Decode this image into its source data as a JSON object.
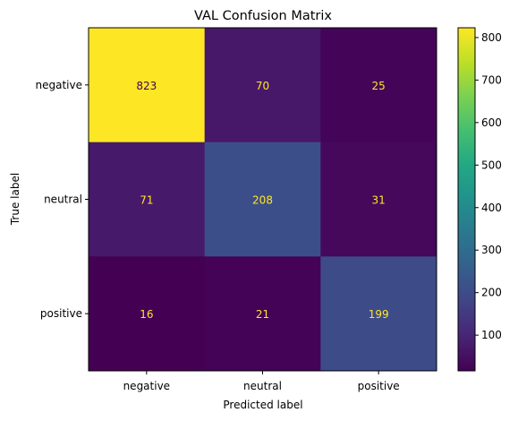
{
  "chart_data": {
    "type": "heatmap",
    "title": "VAL Confusion Matrix",
    "xlabel": "Predicted label",
    "ylabel": "True label",
    "x_categories": [
      "negative",
      "neutral",
      "positive"
    ],
    "y_categories": [
      "negative",
      "neutral",
      "positive"
    ],
    "values": [
      [
        823,
        70,
        25
      ],
      [
        71,
        208,
        31
      ],
      [
        16,
        21,
        199
      ]
    ],
    "colormap": "viridis",
    "colorbar": {
      "ticks": [
        100,
        200,
        300,
        400,
        500,
        600,
        700,
        800
      ],
      "vmin": 16,
      "vmax": 823
    },
    "label_color_light": "#fde725",
    "label_color_dark": "#440154",
    "grid": false
  }
}
